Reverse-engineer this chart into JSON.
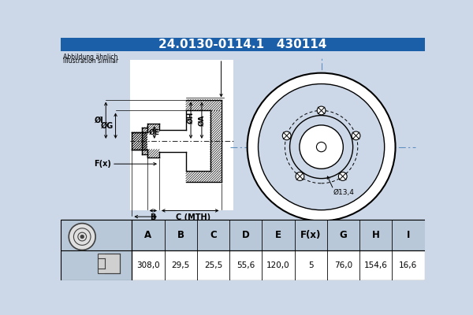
{
  "title_part_number": "24.0130-0114.1",
  "title_ref_number": "430114",
  "subtitle_line1": "Abbildung ähnlich",
  "subtitle_line2": "Illustration similar",
  "table_headers": [
    "A",
    "B",
    "C",
    "D",
    "E",
    "F(x)",
    "G",
    "H",
    "I"
  ],
  "table_values": [
    "308,0",
    "29,5",
    "25,5",
    "55,6",
    "120,0",
    "5",
    "76,0",
    "154,6",
    "16,6"
  ],
  "dim13_4": "Ø13,4",
  "title_bg": "#1a5fa8",
  "title_fg": "#ffffff",
  "main_bg": "#ccd8e8",
  "diagram_bg": "#ccd8e8",
  "white": "#ffffff",
  "black": "#000000",
  "table_header_bg": "#b8c8d8",
  "table_data_bg": "#ffffff",
  "table_img_bg": "#b8c8d8",
  "center_line_color": "#6090c0",
  "ate_color": "#b0c4d8"
}
